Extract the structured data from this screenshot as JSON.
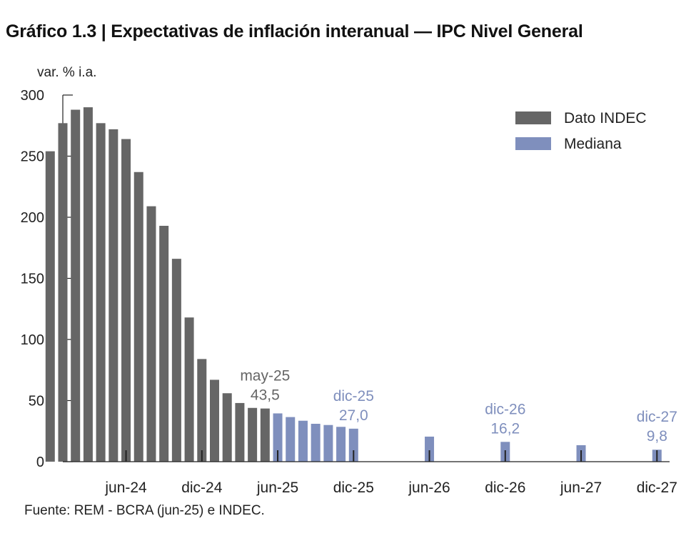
{
  "title": "Gráfico 1.3 | Expectativas de inflación interanual — IPC Nivel General",
  "source": "Fuente: REM - BCRA (jun-25) e INDEC.",
  "chart_data": {
    "type": "bar",
    "ylabel": "var. % i.a.",
    "xlabel": "",
    "ylim": [
      0,
      300
    ],
    "yticks": [
      "0",
      "50",
      "100",
      "150",
      "200",
      "250",
      "300"
    ],
    "xlim": [
      "jan-24",
      "jan-28"
    ],
    "xticks": [
      {
        "label": "jun-24",
        "month": "jun-24"
      },
      {
        "label": "dic-24",
        "month": "dic-24"
      },
      {
        "label": "jun-25",
        "month": "jun-25"
      },
      {
        "label": "dic-25",
        "month": "dic-25"
      },
      {
        "label": "jun-26",
        "month": "jun-26"
      },
      {
        "label": "dic-26",
        "month": "dic-26"
      },
      {
        "label": "jun-27",
        "month": "jun-27"
      },
      {
        "label": "dic-27",
        "month": "dic-27"
      }
    ],
    "legend_position": "top-right",
    "series": [
      {
        "name": "Dato INDEC",
        "color": "#666666",
        "points": [
          {
            "month": "dic-23",
            "value": 254
          },
          {
            "month": "ene-24",
            "value": 277
          },
          {
            "month": "feb-24",
            "value": 288
          },
          {
            "month": "mar-24",
            "value": 290
          },
          {
            "month": "abr-24",
            "value": 277
          },
          {
            "month": "may-24",
            "value": 272
          },
          {
            "month": "jun-24",
            "value": 264
          },
          {
            "month": "jul-24",
            "value": 237
          },
          {
            "month": "ago-24",
            "value": 209
          },
          {
            "month": "sep-24",
            "value": 193
          },
          {
            "month": "oct-24",
            "value": 166
          },
          {
            "month": "nov-24",
            "value": 118
          },
          {
            "month": "dic-24",
            "value": 84
          },
          {
            "month": "ene-25",
            "value": 67
          },
          {
            "month": "feb-25",
            "value": 56
          },
          {
            "month": "mar-25",
            "value": 48
          },
          {
            "month": "abr-25",
            "value": 44
          },
          {
            "month": "may-25",
            "value": 43.5
          }
        ]
      },
      {
        "name": "Mediana",
        "color": "#7f8fbd",
        "points": [
          {
            "month": "jun-25",
            "value": 39.5
          },
          {
            "month": "jul-25",
            "value": 36.5
          },
          {
            "month": "ago-25",
            "value": 33.5
          },
          {
            "month": "sep-25",
            "value": 31
          },
          {
            "month": "oct-25",
            "value": 30
          },
          {
            "month": "nov-25",
            "value": 28.5
          },
          {
            "month": "dic-25",
            "value": 27.0
          },
          {
            "month": "jun-26",
            "value": 20.5
          },
          {
            "month": "dic-26",
            "value": 16.2
          },
          {
            "month": "jun-27",
            "value": 13.5
          },
          {
            "month": "dic-27",
            "value": 9.8
          }
        ]
      }
    ],
    "annotations": [
      {
        "series": "Dato INDEC",
        "month": "may-25",
        "label": "may-25",
        "value_label": "43,5"
      },
      {
        "series": "Mediana",
        "month": "dic-25",
        "label": "dic-25",
        "value_label": "27,0"
      },
      {
        "series": "Mediana",
        "month": "dic-26",
        "label": "dic-26",
        "value_label": "16,2"
      },
      {
        "series": "Mediana",
        "month": "dic-27",
        "label": "dic-27",
        "value_label": "9,8"
      }
    ]
  }
}
